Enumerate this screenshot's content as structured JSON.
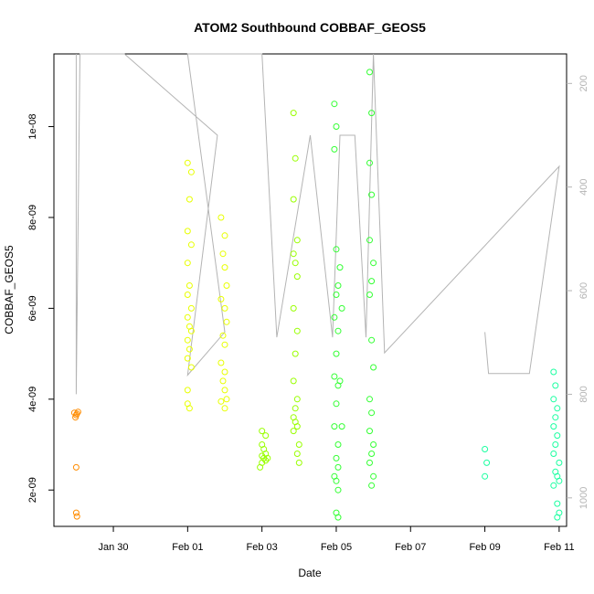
{
  "chart_data": {
    "type": "scatter",
    "title": "ATOM2 Southbound COBBAF_GEOS5",
    "xlabel": "Date",
    "ylabel": "COBBAF_GEOS5",
    "xlim": [
      -1.6,
      12.2
    ],
    "ylim": [
      1.2e-09,
      1.16e-08
    ],
    "x_ticks": [
      {
        "value": 0,
        "label": "Jan 30"
      },
      {
        "value": 2,
        "label": "Feb 01"
      },
      {
        "value": 4,
        "label": "Feb 03"
      },
      {
        "value": 6,
        "label": "Feb 05"
      },
      {
        "value": 8,
        "label": "Feb 07"
      },
      {
        "value": 10,
        "label": "Feb 09"
      },
      {
        "value": 12,
        "label": "Feb 11"
      }
    ],
    "y_ticks": [
      {
        "value": 2e-09,
        "label": "2e-09"
      },
      {
        "value": 4e-09,
        "label": "4e-09"
      },
      {
        "value": 6e-09,
        "label": "6e-09"
      },
      {
        "value": 8e-09,
        "label": "8e-09"
      },
      {
        "value": 1e-08,
        "label": "1e-08"
      }
    ],
    "right_axis": {
      "color": "#b4b4b4",
      "lim": [
        143,
        1055
      ],
      "ticks": [
        200,
        400,
        600,
        800,
        1000
      ],
      "reversed": true,
      "line": [
        [
          -1.0,
          143
        ],
        [
          -1.0,
          800
        ],
        [
          -0.9,
          143
        ],
        [
          0.3,
          143
        ],
        [
          2.8,
          300
        ],
        [
          2.0,
          763
        ],
        [
          3.0,
          680
        ],
        [
          2.0,
          143
        ],
        [
          3.0,
          143
        ],
        [
          4.0,
          143
        ],
        [
          4.4,
          690
        ],
        [
          5.3,
          300
        ],
        [
          5.9,
          690
        ],
        [
          6.1,
          300
        ],
        [
          6.5,
          300
        ],
        [
          6.8,
          690
        ],
        [
          7.0,
          143
        ],
        [
          7.3,
          720
        ],
        [
          12.0,
          360
        ],
        [
          11.2,
          760
        ],
        [
          10.1,
          760
        ],
        [
          10.0,
          680
        ]
      ]
    },
    "series": [
      {
        "color": "#ff8c00",
        "points": [
          [
            -1.05,
            3.7e-09
          ],
          [
            -1.0,
            3.65e-09
          ],
          [
            -0.95,
            3.72e-09
          ],
          [
            -1.02,
            3.6e-09
          ],
          [
            -0.98,
            3.68e-09
          ],
          [
            -1.0,
            2.5e-09
          ],
          [
            -1.0,
            1.5e-09
          ],
          [
            -0.98,
            1.42e-09
          ]
        ]
      },
      {
        "color": "#e8ff00",
        "points": [
          [
            2.0,
            9.2e-09
          ],
          [
            2.1,
            9e-09
          ],
          [
            2.05,
            8.4e-09
          ],
          [
            2.0,
            7.7e-09
          ],
          [
            2.1,
            7.4e-09
          ],
          [
            2.0,
            7e-09
          ],
          [
            2.05,
            6.5e-09
          ],
          [
            2.0,
            6.3e-09
          ],
          [
            2.1,
            6e-09
          ],
          [
            2.0,
            5.8e-09
          ],
          [
            2.05,
            5.6e-09
          ],
          [
            2.1,
            5.5e-09
          ],
          [
            2.0,
            5.3e-09
          ],
          [
            2.05,
            5.1e-09
          ],
          [
            2.0,
            4.9e-09
          ],
          [
            2.1,
            4.7e-09
          ],
          [
            2.0,
            4.2e-09
          ],
          [
            2.0,
            3.9e-09
          ],
          [
            2.05,
            3.8e-09
          ],
          [
            2.9,
            8e-09
          ],
          [
            3.0,
            7.6e-09
          ],
          [
            2.95,
            7.2e-09
          ],
          [
            3.0,
            6.9e-09
          ],
          [
            3.05,
            6.5e-09
          ],
          [
            2.9,
            6.2e-09
          ],
          [
            3.0,
            6e-09
          ],
          [
            3.05,
            5.7e-09
          ],
          [
            2.95,
            5.4e-09
          ],
          [
            3.0,
            5.2e-09
          ],
          [
            2.9,
            4.8e-09
          ],
          [
            3.0,
            4.6e-09
          ],
          [
            2.95,
            4.4e-09
          ],
          [
            3.0,
            4.2e-09
          ],
          [
            3.05,
            4e-09
          ],
          [
            2.9,
            3.95e-09
          ],
          [
            3.0,
            3.8e-09
          ]
        ]
      },
      {
        "color": "#99ff00",
        "points": [
          [
            4.0,
            3.3e-09
          ],
          [
            4.1,
            3.2e-09
          ],
          [
            4.0,
            3e-09
          ],
          [
            4.05,
            2.9e-09
          ],
          [
            4.1,
            2.8e-09
          ],
          [
            4.0,
            2.75e-09
          ],
          [
            4.05,
            2.7e-09
          ],
          [
            4.1,
            2.65e-09
          ],
          [
            4.0,
            2.6e-09
          ],
          [
            4.15,
            2.7e-09
          ],
          [
            3.95,
            2.5e-09
          ],
          [
            4.85,
            1.03e-08
          ],
          [
            4.9,
            9.3e-09
          ],
          [
            4.85,
            8.4e-09
          ],
          [
            4.95,
            7.5e-09
          ],
          [
            4.85,
            7.2e-09
          ],
          [
            4.9,
            7e-09
          ],
          [
            4.95,
            6.7e-09
          ],
          [
            4.85,
            6e-09
          ],
          [
            4.95,
            5.5e-09
          ],
          [
            4.9,
            5e-09
          ],
          [
            4.85,
            4.4e-09
          ],
          [
            4.95,
            4e-09
          ],
          [
            4.9,
            3.8e-09
          ],
          [
            4.85,
            3.6e-09
          ],
          [
            4.9,
            3.5e-09
          ],
          [
            4.95,
            3.4e-09
          ],
          [
            4.85,
            3.3e-09
          ],
          [
            5.0,
            3e-09
          ],
          [
            4.95,
            2.8e-09
          ],
          [
            5.0,
            2.6e-09
          ]
        ]
      },
      {
        "color": "#33ff33",
        "points": [
          [
            5.95,
            1.05e-08
          ],
          [
            6.0,
            1e-08
          ],
          [
            5.95,
            9.5e-09
          ],
          [
            6.0,
            7.3e-09
          ],
          [
            6.05,
            6.5e-09
          ],
          [
            6.0,
            6.3e-09
          ],
          [
            5.95,
            5.8e-09
          ],
          [
            6.05,
            5.5e-09
          ],
          [
            6.0,
            5e-09
          ],
          [
            5.95,
            4.5e-09
          ],
          [
            6.05,
            4.3e-09
          ],
          [
            6.0,
            3.9e-09
          ],
          [
            5.95,
            3.4e-09
          ],
          [
            6.05,
            3e-09
          ],
          [
            6.0,
            2.7e-09
          ],
          [
            6.05,
            2.5e-09
          ],
          [
            5.95,
            2.3e-09
          ],
          [
            6.0,
            2.2e-09
          ],
          [
            6.05,
            2e-09
          ],
          [
            6.0,
            1.5e-09
          ],
          [
            6.05,
            1.4e-09
          ],
          [
            6.1,
            6.9e-09
          ],
          [
            6.15,
            6e-09
          ],
          [
            6.1,
            4.4e-09
          ],
          [
            6.15,
            3.4e-09
          ],
          [
            6.9,
            1.12e-08
          ],
          [
            6.95,
            1.03e-08
          ],
          [
            6.9,
            9.2e-09
          ],
          [
            6.95,
            8.5e-09
          ],
          [
            6.9,
            7.5e-09
          ],
          [
            7.0,
            7e-09
          ],
          [
            6.95,
            6.6e-09
          ],
          [
            6.9,
            6.3e-09
          ],
          [
            6.95,
            5.3e-09
          ],
          [
            7.0,
            4.7e-09
          ],
          [
            6.9,
            4e-09
          ],
          [
            6.95,
            3.7e-09
          ],
          [
            6.9,
            3.3e-09
          ],
          [
            7.0,
            3e-09
          ],
          [
            6.95,
            2.8e-09
          ],
          [
            6.9,
            2.6e-09
          ],
          [
            7.0,
            2.3e-09
          ],
          [
            6.95,
            2.1e-09
          ]
        ]
      },
      {
        "color": "#1affa0",
        "points": [
          [
            10.0,
            2.9e-09
          ],
          [
            10.05,
            2.6e-09
          ],
          [
            10.0,
            2.3e-09
          ],
          [
            11.85,
            4.6e-09
          ],
          [
            11.9,
            4.3e-09
          ],
          [
            11.85,
            4e-09
          ],
          [
            11.95,
            3.8e-09
          ],
          [
            11.9,
            3.6e-09
          ],
          [
            11.85,
            3.4e-09
          ],
          [
            11.95,
            3.2e-09
          ],
          [
            11.9,
            3e-09
          ],
          [
            11.85,
            2.8e-09
          ],
          [
            12.0,
            2.6e-09
          ],
          [
            11.9,
            2.4e-09
          ],
          [
            11.95,
            2.3e-09
          ],
          [
            12.0,
            2.2e-09
          ],
          [
            11.85,
            2.1e-09
          ],
          [
            11.95,
            1.7e-09
          ],
          [
            12.0,
            1.5e-09
          ],
          [
            11.95,
            1.4e-09
          ]
        ]
      }
    ]
  }
}
